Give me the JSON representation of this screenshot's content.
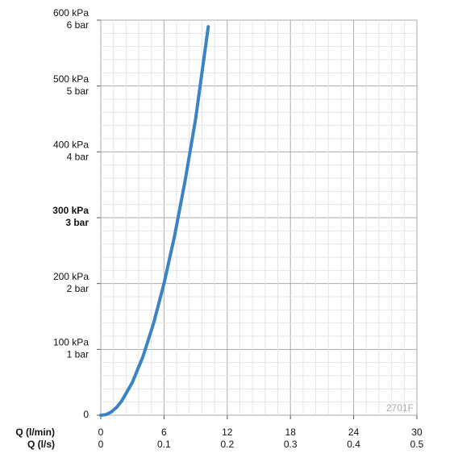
{
  "chart_data": {
    "type": "line",
    "x_label": "Q (l/min)",
    "x2_label": "Q (l/s)",
    "x": [
      0,
      0.5,
      1,
      1.5,
      2,
      3,
      4,
      5,
      6,
      7,
      8,
      9,
      10.2
    ],
    "series": [
      {
        "color": "#3a84c4",
        "values": [
          0,
          1,
          5,
          12,
          22,
          50,
          89,
          139,
          200,
          272,
          356,
          450,
          590
        ]
      }
    ],
    "xlim": [
      0,
      30
    ],
    "xticks": [
      0,
      6,
      12,
      18,
      24,
      30
    ],
    "x2lim": [
      0,
      0.5
    ],
    "x2ticks": [
      0,
      0.1,
      0.2,
      0.3,
      0.4,
      0.5
    ],
    "ylim": [
      0,
      600
    ],
    "yticks": [
      0,
      {
        "value": 100,
        "label": "100 kPa",
        "label2": "1 bar"
      },
      {
        "value": 200,
        "label": "200 kPa",
        "label2": "2 bar"
      },
      {
        "value": 300,
        "label": "300 kPa",
        "label2": "3 bar",
        "bold": true
      },
      {
        "value": 400,
        "label": "400 kPa",
        "label2": "4 bar"
      },
      {
        "value": 500,
        "label": "500 kPa",
        "label2": "5 bar"
      },
      {
        "value": 600,
        "label": "600 kPa",
        "label2": "6 bar"
      }
    ],
    "grid": true,
    "minor_grid": 5,
    "watermark": "2701F"
  }
}
